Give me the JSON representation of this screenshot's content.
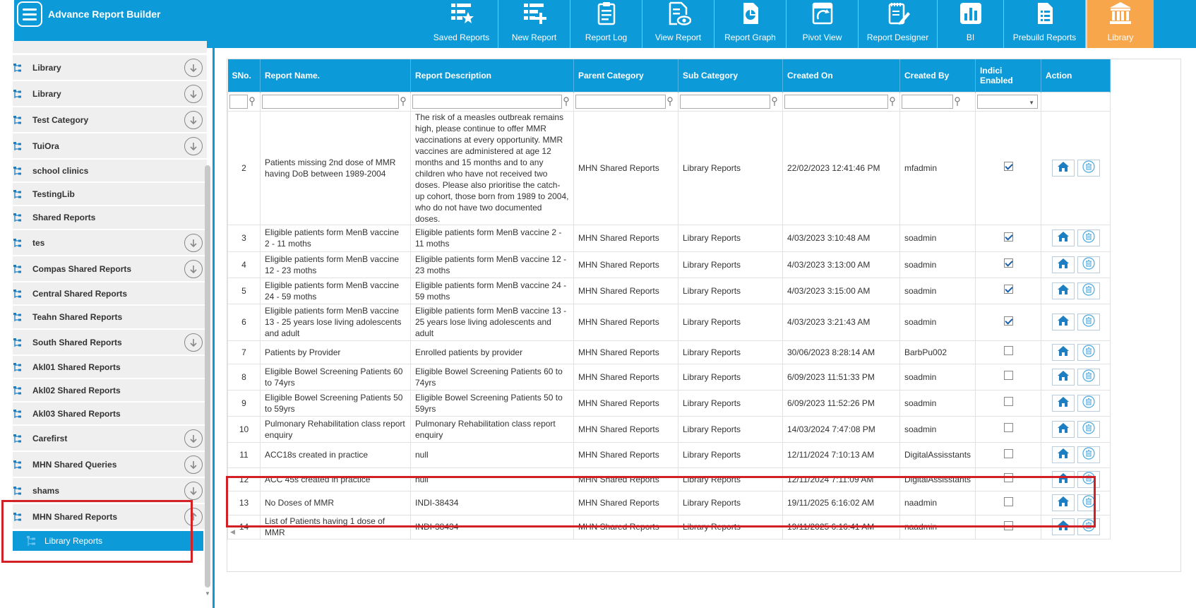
{
  "app": {
    "title": "Advance Report Builder"
  },
  "nav": [
    {
      "label": "Saved Reports",
      "icon": "saved-reports-icon"
    },
    {
      "label": "New Report",
      "icon": "new-report-icon"
    },
    {
      "label": "Report Log",
      "icon": "report-log-icon"
    },
    {
      "label": "View Report",
      "icon": "view-report-icon"
    },
    {
      "label": "Report Graph",
      "icon": "report-graph-icon"
    },
    {
      "label": "Pivot View",
      "icon": "pivot-view-icon"
    },
    {
      "label": "Report Designer",
      "icon": "report-designer-icon"
    },
    {
      "label": "BI",
      "icon": "bi-chart-icon"
    },
    {
      "label": "Prebuild Reports",
      "icon": "prebuild-reports-icon"
    },
    {
      "label": "Library",
      "icon": "library-icon",
      "active": true
    }
  ],
  "sidebar": {
    "items": [
      {
        "label": "Library",
        "expandable": true
      },
      {
        "label": "Library",
        "expandable": true
      },
      {
        "label": "Test Category",
        "expandable": true
      },
      {
        "label": "TuiOra",
        "expandable": true
      },
      {
        "label": "school clinics",
        "expandable": false
      },
      {
        "label": "TestingLib",
        "expandable": false
      },
      {
        "label": "Shared Reports",
        "expandable": false
      },
      {
        "label": "tes",
        "expandable": true
      },
      {
        "label": "Compas Shared Reports",
        "expandable": true
      },
      {
        "label": "Central Shared Reports",
        "expandable": false
      },
      {
        "label": "Teahn Shared Reports",
        "expandable": false
      },
      {
        "label": "South Shared Reports",
        "expandable": true
      },
      {
        "label": "Akl01 Shared Reports",
        "expandable": false
      },
      {
        "label": "Akl02 Shared Reports",
        "expandable": false
      },
      {
        "label": "Akl03 Shared Reports",
        "expandable": false
      },
      {
        "label": "Carefirst",
        "expandable": true
      },
      {
        "label": "MHN Shared Queries",
        "expandable": true
      },
      {
        "label": "shams",
        "expandable": true
      },
      {
        "label": "MHN Shared Reports",
        "expandable": true,
        "expanded": true
      }
    ],
    "sub_item": "Library Reports"
  },
  "table": {
    "columns": [
      "SNo.",
      "Report Name.",
      "Report Description",
      "Parent Category",
      "Sub Category",
      "Created On",
      "Created By",
      "Indici Enabled",
      "Action"
    ],
    "rows": [
      {
        "sno": "2",
        "name": "Patients missing 2nd dose of MMR having DoB between 1989-2004",
        "desc": "The risk of a measles outbreak remains high, please continue to offer MMR vaccinations at every opportunity. MMR vaccines are administered at age 12 months and 15 months and to any children who have not received two doses. Please also prioritise the catch-up cohort, those born from 1989 to 2004, who do not have two documented doses.",
        "parent": "MHN Shared Reports",
        "sub": "Library Reports",
        "created_on": "22/02/2023 12:41:46 PM",
        "created_by": "mfadmin",
        "enabled": true
      },
      {
        "sno": "3",
        "name": "Eligible patients form MenB vaccine 2 - 11 moths",
        "desc": "Eligible patients form MenB vaccine 2 - 11 moths",
        "parent": "MHN Shared Reports",
        "sub": "Library Reports",
        "created_on": "4/03/2023 3:10:48 AM",
        "created_by": "soadmin",
        "enabled": true
      },
      {
        "sno": "4",
        "name": "Eligible patients form MenB vaccine 12 - 23 moths",
        "desc": "Eligible patients form MenB vaccine 12 - 23 moths",
        "parent": "MHN Shared Reports",
        "sub": "Library Reports",
        "created_on": "4/03/2023 3:13:00 AM",
        "created_by": "soadmin",
        "enabled": true
      },
      {
        "sno": "5",
        "name": "Eligible patients form MenB vaccine 24 - 59 moths",
        "desc": "Eligible patients form MenB vaccine 24 - 59 moths",
        "parent": "MHN Shared Reports",
        "sub": "Library Reports",
        "created_on": "4/03/2023 3:15:00 AM",
        "created_by": "soadmin",
        "enabled": true
      },
      {
        "sno": "6",
        "name": "Eligible patients form MenB vaccine 13 - 25 years lose living adolescents and adult",
        "desc": "Eligible patients form MenB vaccine 13 - 25 years lose living adolescents and adult",
        "parent": "MHN Shared Reports",
        "sub": "Library Reports",
        "created_on": "4/03/2023 3:21:43 AM",
        "created_by": "soadmin",
        "enabled": true
      },
      {
        "sno": "7",
        "name": "Patients by Provider",
        "desc": "Enrolled patients by provider",
        "parent": "MHN Shared Reports",
        "sub": "Library Reports",
        "created_on": "30/06/2023 8:28:14 AM",
        "created_by": "BarbPu002",
        "enabled": false
      },
      {
        "sno": "8",
        "name": "Eligible Bowel Screening Patients 60 to 74yrs",
        "desc": "Eligible Bowel Screening Patients 60 to 74yrs",
        "parent": "MHN Shared Reports",
        "sub": "Library Reports",
        "created_on": "6/09/2023 11:51:33 PM",
        "created_by": "soadmin",
        "enabled": false
      },
      {
        "sno": "9",
        "name": "Eligible Bowel Screening Patients 50 to 59yrs",
        "desc": "Eligible Bowel Screening Patients 50 to 59yrs",
        "parent": "MHN Shared Reports",
        "sub": "Library Reports",
        "created_on": "6/09/2023 11:52:26 PM",
        "created_by": "soadmin",
        "enabled": false
      },
      {
        "sno": "10",
        "name": "Pulmonary Rehabilitation class report enquiry",
        "desc": "Pulmonary Rehabilitation class report enquiry",
        "parent": "MHN Shared Reports",
        "sub": "Library Reports",
        "created_on": "14/03/2024 7:47:08 PM",
        "created_by": "soadmin",
        "enabled": false
      },
      {
        "sno": "11",
        "name": "ACC18s created in practice",
        "desc": "null",
        "parent": "MHN Shared Reports",
        "sub": "Library Reports",
        "created_on": "12/11/2024 7:10:13 AM",
        "created_by": "DigitalAssisstants",
        "enabled": false
      },
      {
        "sno": "12",
        "name": "ACC 45s created in practice",
        "desc": "null",
        "parent": "MHN Shared Reports",
        "sub": "Library Reports",
        "created_on": "12/11/2024 7:11:09 AM",
        "created_by": "DigitalAssisstants",
        "enabled": false
      },
      {
        "sno": "13",
        "name": "No Doses of MMR",
        "desc": "INDI-38434",
        "parent": "MHN Shared Reports",
        "sub": "Library Reports",
        "created_on": "19/11/2025 6:16:02 AM",
        "created_by": "naadmin",
        "enabled": false
      },
      {
        "sno": "14",
        "name": "List of Patients having 1 dose of MMR",
        "desc": "INDI-38434",
        "parent": "MHN Shared Reports",
        "sub": "Library Reports",
        "created_on": "19/11/2025 6:16:41 AM",
        "created_by": "naadmin",
        "enabled": false
      }
    ]
  },
  "colors": {
    "primary": "#0d9ad8",
    "active_tab": "#f7a64c",
    "highlight": "#d32027"
  }
}
